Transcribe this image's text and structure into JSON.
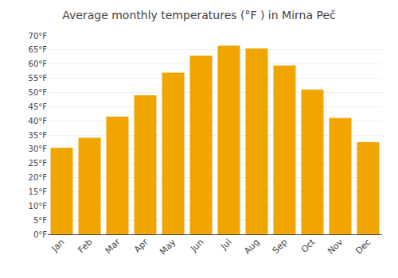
{
  "chart_data": {
    "type": "bar",
    "title": "Average monthly temperatures (°F ) in Mirna Peč",
    "categories": [
      "Jan",
      "Feb",
      "Mar",
      "Apr",
      "May",
      "Jun",
      "Jul",
      "Aug",
      "Sep",
      "Oct",
      "Nov",
      "Dec"
    ],
    "values": [
      30.5,
      34.0,
      41.5,
      49.0,
      57.0,
      63.0,
      66.5,
      65.5,
      59.5,
      51.0,
      41.0,
      32.5
    ],
    "color": "#F0A500",
    "ylim": [
      0,
      70
    ],
    "yticks": [
      {
        "value": 0,
        "label": "0°F"
      },
      {
        "value": 5,
        "label": "5°F"
      },
      {
        "value": 10,
        "label": "10°F"
      },
      {
        "value": 15,
        "label": "15°F"
      },
      {
        "value": 20,
        "label": "20°F"
      },
      {
        "value": 25,
        "label": "25°F"
      },
      {
        "value": 30,
        "label": "30°F"
      },
      {
        "value": 35,
        "label": "35°F"
      },
      {
        "value": 40,
        "label": "40°F"
      },
      {
        "value": 45,
        "label": "45°F"
      },
      {
        "value": 50,
        "label": "50°F"
      },
      {
        "value": 55,
        "label": "55°F"
      },
      {
        "value": 60,
        "label": "60°F"
      },
      {
        "value": 65,
        "label": "65°F"
      },
      {
        "value": 70,
        "label": "70°F"
      }
    ],
    "grid": true
  }
}
